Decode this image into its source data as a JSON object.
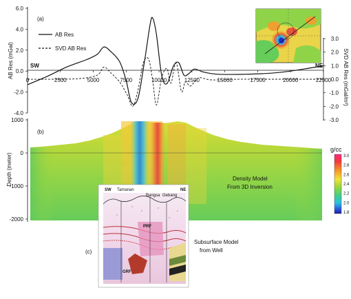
{
  "panel_a": {
    "tag": "(a)",
    "left_axis_label": "AB Res (mGal)",
    "right_axis_label": "SVD AB Res (mGal/m²)",
    "legend": [
      "AB Res",
      "SVD AB Res"
    ],
    "sw_label": "SW",
    "ne_label": "NE"
  },
  "panel_b": {
    "tag": "(b)",
    "depth_label": "Depth (meter)",
    "density_caption_line1": "Density Model",
    "density_caption_line2": "From 3D Inversion",
    "colorbar_unit": "g/cc",
    "colorbar_ticks": [
      "3.0",
      "2.8",
      "2.6",
      "2.4",
      "2.2",
      "2.0",
      "1.8"
    ]
  },
  "panel_c": {
    "tag": "(c)",
    "caption_line1": "Subsurface Model",
    "caption_line2": "from Well",
    "header_sw": "SW",
    "header_ne": "NE",
    "header_labels": [
      "Tamanan",
      "Bangsa",
      "Gebang"
    ],
    "inner_labels": [
      "PRF",
      "GRF"
    ]
  },
  "chart_data": [
    {
      "type": "line",
      "title": "",
      "xlabel": "",
      "ylabel": "AB Res (mGal)",
      "y2label": "SVD AB Res (mGal/m²)",
      "xlim": [
        0,
        22500
      ],
      "ylim": [
        -4.0,
        6.0
      ],
      "y2lim": [
        -3.0,
        3.0
      ],
      "x_ticks": [
        0,
        2500,
        5000,
        7500,
        10000,
        12500,
        15000,
        17500,
        20000,
        22500
      ],
      "y_ticks": [
        -4.0,
        -2.0,
        0.0,
        2.0,
        4.0,
        6.0
      ],
      "y2_ticks": [
        -3.0,
        -2.0,
        -1.0,
        0.0,
        1.0,
        2.0,
        3.0
      ],
      "series": [
        {
          "name": "AB Res",
          "axis": "left",
          "style": "solid",
          "x": [
            0,
            1500,
            3000,
            4500,
            5300,
            5800,
            6300,
            7000,
            7500,
            7900,
            8400,
            8900,
            9300,
            9500,
            9800,
            10200,
            10600,
            11100,
            11500,
            11900,
            12300,
            12700,
            13400,
            14500,
            16500,
            18500,
            20000,
            21500,
            22500
          ],
          "values": [
            -1.3,
            -0.5,
            0.4,
            1.1,
            1.6,
            2.3,
            1.9,
            0.9,
            -0.9,
            -3.0,
            -2.6,
            1.0,
            4.3,
            5.1,
            3.5,
            -0.4,
            -1.2,
            0.5,
            0.8,
            -0.4,
            -0.2,
            0.2,
            -0.1,
            -0.3,
            -0.3,
            -0.2,
            0.0,
            0.3,
            0.5
          ]
        },
        {
          "name": "SVD AB Res",
          "axis": "right",
          "style": "dashed",
          "x": [
            0,
            2000,
            4000,
            5300,
            5800,
            6300,
            7000,
            7600,
            8000,
            8400,
            8800,
            9200,
            9500,
            9800,
            10200,
            10600,
            10900,
            11300,
            11700,
            12000,
            12400,
            13000,
            14000,
            16000,
            18000,
            20000,
            22500
          ],
          "values": [
            0.0,
            0.0,
            0.05,
            0.3,
            0.9,
            0.5,
            -0.2,
            -1.2,
            -2.0,
            -0.8,
            1.2,
            1.5,
            0.0,
            -1.9,
            0.1,
            0.8,
            -0.3,
            1.2,
            -0.9,
            -0.2,
            -0.5,
            0.1,
            -0.05,
            0.0,
            0.0,
            0.0,
            0.0
          ]
        }
      ]
    },
    {
      "type": "heatmap",
      "title": "",
      "ylabel": "Depth (meter)",
      "y_ticks": [
        1000,
        0,
        -1000,
        -2000
      ],
      "colorbar_unit": "g/cc",
      "colorbar_range": [
        1.8,
        3.0
      ]
    }
  ]
}
